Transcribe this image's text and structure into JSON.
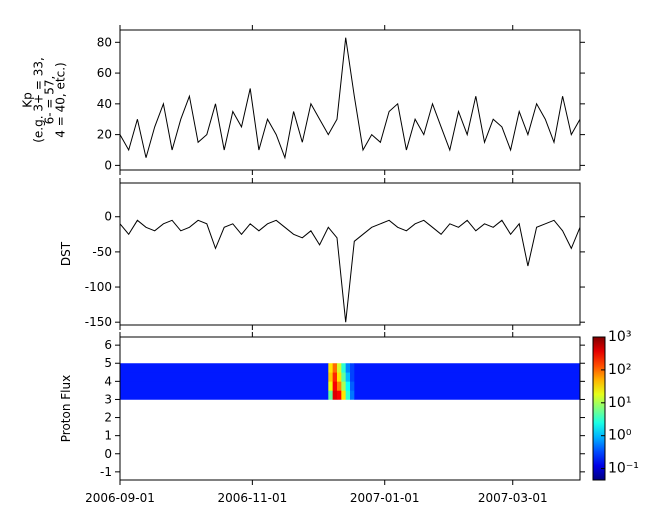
{
  "chart_data": [
    {
      "type": "line",
      "ylabel": [
        "Kp",
        "(e.g. 3+ = 33,",
        "6- = 57,",
        "4 = 40, etc.)"
      ],
      "color": "#000000",
      "xlim": [
        "2006-09-01",
        "2007-04-01"
      ],
      "xticks": [
        "2006-09-01",
        "2006-11-01",
        "2007-01-01",
        "2007-03-01"
      ],
      "ylim": [
        -3,
        88
      ],
      "yticks": [
        0,
        20,
        40,
        60,
        80
      ],
      "x": [
        "2006-09-01",
        "2006-09-05",
        "2006-09-09",
        "2006-09-13",
        "2006-09-17",
        "2006-09-21",
        "2006-09-25",
        "2006-09-29",
        "2006-10-03",
        "2006-10-07",
        "2006-10-11",
        "2006-10-15",
        "2006-10-19",
        "2006-10-23",
        "2006-10-27",
        "2006-10-31",
        "2006-11-04",
        "2006-11-08",
        "2006-11-12",
        "2006-11-16",
        "2006-11-20",
        "2006-11-24",
        "2006-11-28",
        "2006-12-02",
        "2006-12-06",
        "2006-12-10",
        "2006-12-14",
        "2006-12-18",
        "2006-12-22",
        "2006-12-26",
        "2006-12-30",
        "2007-01-03",
        "2007-01-07",
        "2007-01-11",
        "2007-01-15",
        "2007-01-19",
        "2007-01-23",
        "2007-01-27",
        "2007-01-31",
        "2007-02-04",
        "2007-02-08",
        "2007-02-12",
        "2007-02-16",
        "2007-02-20",
        "2007-02-24",
        "2007-02-28",
        "2007-03-04",
        "2007-03-08",
        "2007-03-12",
        "2007-03-16",
        "2007-03-20",
        "2007-03-24",
        "2007-03-28",
        "2007-04-01"
      ],
      "values": [
        20,
        10,
        30,
        5,
        25,
        40,
        10,
        30,
        45,
        15,
        20,
        40,
        10,
        35,
        25,
        50,
        10,
        30,
        20,
        5,
        35,
        15,
        40,
        30,
        20,
        30,
        83,
        45,
        10,
        20,
        15,
        35,
        40,
        10,
        30,
        20,
        40,
        25,
        10,
        35,
        20,
        45,
        15,
        30,
        25,
        10,
        35,
        20,
        40,
        30,
        15,
        45,
        20,
        30
      ]
    },
    {
      "type": "line",
      "ylabel": [
        "DST"
      ],
      "color": "#000000",
      "xlim": [
        "2006-09-01",
        "2007-04-01"
      ],
      "xticks": [
        "2006-09-01",
        "2006-11-01",
        "2007-01-01",
        "2007-03-01"
      ],
      "ylim": [
        -154,
        48
      ],
      "yticks": [
        0,
        -50,
        -100,
        -150
      ],
      "x": [
        "2006-09-01",
        "2006-09-05",
        "2006-09-09",
        "2006-09-13",
        "2006-09-17",
        "2006-09-21",
        "2006-09-25",
        "2006-09-29",
        "2006-10-03",
        "2006-10-07",
        "2006-10-11",
        "2006-10-15",
        "2006-10-19",
        "2006-10-23",
        "2006-10-27",
        "2006-10-31",
        "2006-11-04",
        "2006-11-08",
        "2006-11-12",
        "2006-11-16",
        "2006-11-20",
        "2006-11-24",
        "2006-11-28",
        "2006-12-02",
        "2006-12-06",
        "2006-12-10",
        "2006-12-14",
        "2006-12-18",
        "2006-12-22",
        "2006-12-26",
        "2006-12-30",
        "2007-01-03",
        "2007-01-07",
        "2007-01-11",
        "2007-01-15",
        "2007-01-19",
        "2007-01-23",
        "2007-01-27",
        "2007-01-31",
        "2007-02-04",
        "2007-02-08",
        "2007-02-12",
        "2007-02-16",
        "2007-02-20",
        "2007-02-24",
        "2007-02-28",
        "2007-03-04",
        "2007-03-08",
        "2007-03-12",
        "2007-03-16",
        "2007-03-20",
        "2007-03-24",
        "2007-03-28",
        "2007-04-01"
      ],
      "values": [
        -10,
        -25,
        -5,
        -15,
        -20,
        -10,
        -5,
        -20,
        -15,
        -5,
        -10,
        -45,
        -15,
        -10,
        -25,
        -10,
        -20,
        -10,
        -5,
        -15,
        -25,
        -30,
        -20,
        -40,
        -15,
        -30,
        -150,
        -35,
        -25,
        -15,
        -10,
        -5,
        -15,
        -20,
        -10,
        -5,
        -15,
        -25,
        -10,
        -15,
        -5,
        -20,
        -10,
        -15,
        -5,
        -25,
        -10,
        -70,
        -15,
        -10,
        -5,
        -20,
        -45,
        -15
      ]
    },
    {
      "type": "heatmap",
      "ylabel": [
        "Proton Flux"
      ],
      "colormap": "jet",
      "log_color": true,
      "xlim": [
        "2006-09-01",
        "2007-04-01"
      ],
      "xticks": [
        "2006-09-01",
        "2006-11-01",
        "2007-01-01",
        "2007-03-01"
      ],
      "ylim": [
        -1.45,
        6.45
      ],
      "yticks": [
        -1,
        0,
        1,
        2,
        3,
        4,
        5,
        6
      ],
      "clim": [
        0.045,
        1000
      ],
      "cticks": [
        {
          "value": 0.1,
          "label": "10⁻¹"
        },
        {
          "value": 1,
          "label": "10⁰"
        },
        {
          "value": 10,
          "label": "10¹"
        },
        {
          "value": 100,
          "label": "10²"
        },
        {
          "value": 1000,
          "label": "10³"
        }
      ],
      "x_edges": [
        "2006-09-01",
        "2006-12-06",
        "2006-12-08",
        "2006-12-10",
        "2006-12-12",
        "2006-12-14",
        "2006-12-16",
        "2006-12-18",
        "2007-04-01"
      ],
      "y_edges": [
        3,
        3.5,
        4,
        4.5,
        5
      ],
      "z": [
        [
          0.2,
          5,
          400,
          300,
          30,
          3,
          0.5,
          0.2
        ],
        [
          0.2,
          20,
          300,
          80,
          10,
          2,
          0.4,
          0.2
        ],
        [
          0.2,
          40,
          200,
          30,
          5,
          1,
          0.3,
          0.2
        ],
        [
          0.2,
          30,
          100,
          15,
          3,
          0.6,
          0.3,
          0.2
        ]
      ]
    }
  ]
}
